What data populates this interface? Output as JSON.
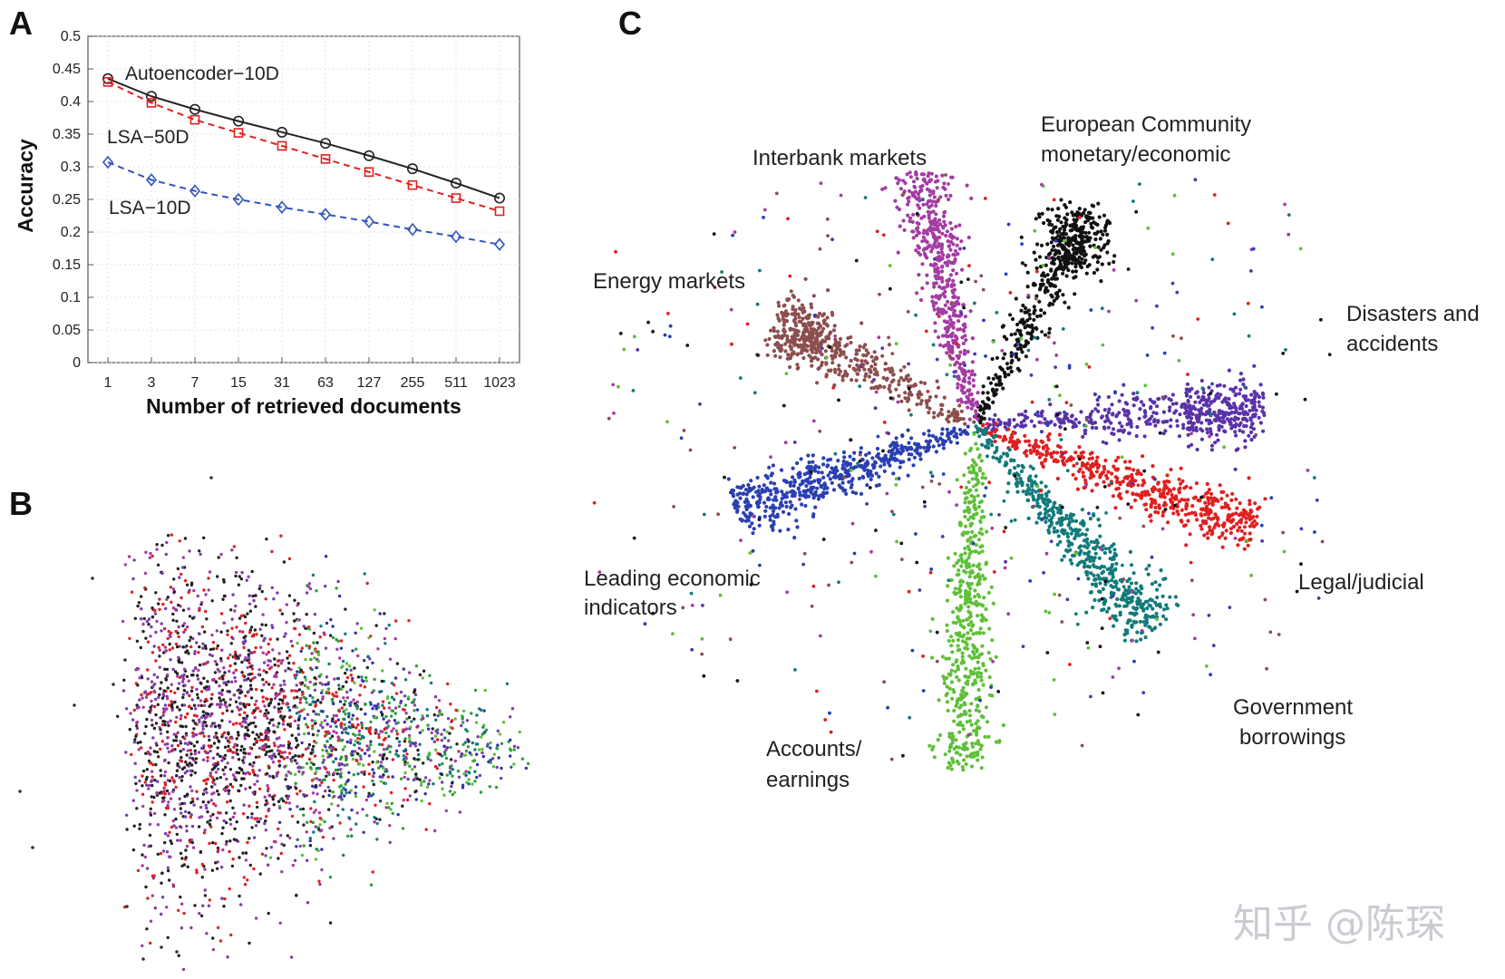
{
  "panels": {
    "a": "A",
    "b": "B",
    "c": "C"
  },
  "chart_data": [
    {
      "type": "line",
      "panel": "A",
      "xlabel": "Number of retrieved documents",
      "ylabel": "Accuracy",
      "categories": [
        "1",
        "3",
        "7",
        "15",
        "31",
        "63",
        "127",
        "255",
        "511",
        "1023"
      ],
      "ylim": [
        0,
        0.5
      ],
      "yticks": [
        "0",
        "0.05",
        "0.1",
        "0.15",
        "0.2",
        "0.25",
        "0.3",
        "0.35",
        "0.4",
        "0.45",
        "0.5"
      ],
      "series": [
        {
          "name": "Autoencoder−10D",
          "color": "#222222",
          "marker": "circle",
          "dash": "solid",
          "values": [
            0.435,
            0.408,
            0.388,
            0.37,
            0.353,
            0.336,
            0.317,
            0.297,
            0.275,
            0.252
          ]
        },
        {
          "name": "LSA−50D",
          "color": "#e02020",
          "marker": "square",
          "dash": "dashed",
          "values": [
            0.43,
            0.398,
            0.372,
            0.352,
            0.332,
            0.312,
            0.292,
            0.272,
            0.252,
            0.232
          ]
        },
        {
          "name": "LSA−10D",
          "color": "#3355bb",
          "marker": "diamond",
          "dash": "dashed",
          "values": [
            0.307,
            0.28,
            0.263,
            0.25,
            0.238,
            0.227,
            0.216,
            0.204,
            0.193,
            0.181
          ]
        }
      ]
    },
    {
      "type": "scatter",
      "panel": "B",
      "note": "2-D projection of documents, colored by category",
      "palette": [
        "#222222",
        "#3333aa",
        "#e02020",
        "#7a3fa8",
        "#2e9e3e",
        "#137a7a",
        "#a33ca3",
        "#5fbf3a"
      ]
    },
    {
      "type": "scatter",
      "panel": "C",
      "labels": {
        "european": [
          "European Community",
          "monetary/economic"
        ],
        "interbank": [
          "Interbank markets"
        ],
        "energy": [
          "Energy markets"
        ],
        "disasters": [
          "Disasters and",
          "accidents"
        ],
        "legal": [
          "Legal/judicial"
        ],
        "government": [
          "Government",
          "borrowings"
        ],
        "accounts": [
          "Accounts/",
          "earnings"
        ],
        "leading": [
          "Leading economic",
          "indicators"
        ]
      },
      "clusters": [
        {
          "name": "European Community monetary/economic",
          "color": "#111111",
          "angle": -62,
          "length": 1.0
        },
        {
          "name": "Interbank markets",
          "color": "#a33ca3",
          "angle": -102,
          "length": 1.0
        },
        {
          "name": "Energy markets",
          "color": "#8c4e4e",
          "angle": -152,
          "length": 1.0
        },
        {
          "name": "Disasters and accidents",
          "color": "#5a32a8",
          "angle": -3,
          "length": 1.0
        },
        {
          "name": "Legal/judicial",
          "color": "#e02020",
          "angle": 20,
          "length": 1.0
        },
        {
          "name": "Government borrowings",
          "color": "#137a7a",
          "angle": 48,
          "length": 1.0
        },
        {
          "name": "Accounts/earnings",
          "color": "#5fbf3a",
          "angle": 92,
          "length": 1.0
        },
        {
          "name": "Leading economic indicators",
          "color": "#2a3fb0",
          "angle": 160,
          "length": 1.0
        }
      ]
    }
  ],
  "watermark": "知乎 @陈琛"
}
